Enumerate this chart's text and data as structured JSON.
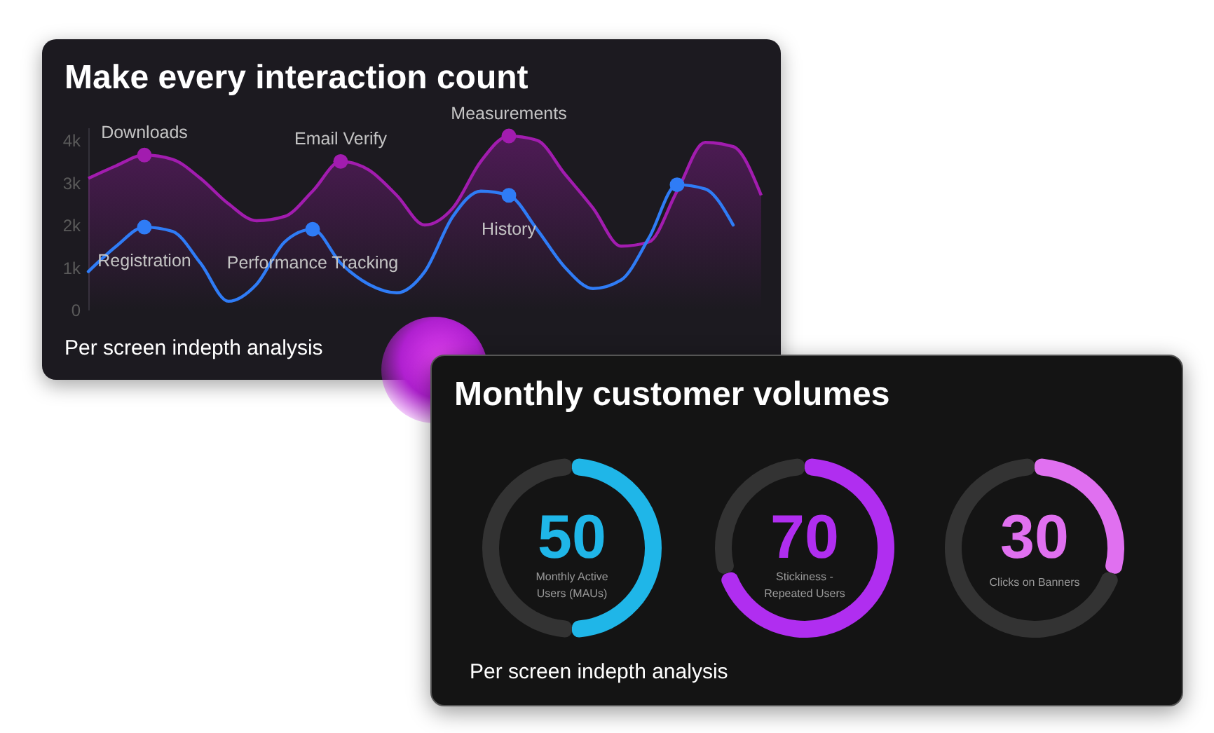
{
  "chart_data": [
    {
      "type": "line",
      "title": "Make every interaction count",
      "categories": [
        null,
        null,
        null,
        null,
        null,
        null,
        null,
        null,
        null,
        null,
        null,
        null,
        null,
        null,
        null,
        null,
        null,
        null,
        null,
        null,
        null,
        null,
        null,
        null,
        null
      ],
      "ylim": [
        0,
        4300
      ],
      "yticks": [
        0,
        {
          "value": 1000,
          "label": "1k"
        },
        {
          "value": 2000,
          "label": "2k"
        },
        {
          "value": 3000,
          "label": "3k"
        },
        {
          "value": 4000,
          "label": "4k"
        }
      ],
      "tick_labels": "y",
      "series": [
        {
          "type": "area",
          "color": "#a21caf",
          "values": [
            3100,
            3400,
            3650,
            3550,
            3100,
            2500,
            2100,
            2200,
            2800,
            3500,
            3300,
            2700,
            2000,
            2400,
            3500,
            4100,
            4000,
            3200,
            2400,
            1500,
            1600,
            2800,
            3950,
            3850,
            2700
          ]
        },
        {
          "type": "line",
          "color": "#2f7cf6",
          "values": [
            900,
            1500,
            1950,
            1850,
            1100,
            200,
            600,
            1600,
            1900,
            1100,
            600,
            400,
            900,
            2200,
            2800,
            2700,
            1900,
            1000,
            500,
            700,
            1700,
            2950,
            2850,
            2000,
            null
          ]
        },
        {
          "type": "scatter",
          "marker": "circle",
          "color": "#a21caf",
          "values": [
            null,
            null,
            3650,
            null,
            null,
            null,
            null,
            null,
            null,
            3500,
            null,
            null,
            null,
            null,
            null,
            4100,
            null,
            null,
            null,
            null,
            null,
            null,
            null,
            null,
            null
          ]
        },
        {
          "type": "scatter",
          "marker": "circle",
          "color": "#2f7cf6",
          "values": [
            null,
            null,
            1950,
            null,
            null,
            null,
            null,
            null,
            1900,
            null,
            null,
            null,
            null,
            null,
            null,
            2700,
            null,
            null,
            null,
            null,
            null,
            2950,
            null,
            null,
            null
          ]
        }
      ],
      "annotations": [
        {
          "text": "Downloads",
          "y": 3650
        },
        {
          "text": "Email Verify",
          "y": 3500
        },
        {
          "text": "Measurements",
          "y": 4100
        },
        {
          "text": "Registration",
          "y": 1950
        },
        {
          "text": "Performance Tracking",
          "y": 1900
        },
        {
          "text": "History",
          "y": 2700
        },
        "Per screen indepth analysis"
      ]
    },
    {
      "type": "donut",
      "title": "Monthly customer volumes",
      "categories": [
        "Monthly Active Users (MAUs)",
        null
      ],
      "values": [
        50,
        50
      ],
      "colors": [
        "#1fb6e8",
        "#333333"
      ],
      "value_labels": [
        "50",
        null
      ],
      "annotations": [
        "Per screen indepth analysis"
      ]
    },
    {
      "type": "donut",
      "categories": [
        "Stickiness - Repeated Users",
        null
      ],
      "values": [
        70,
        30
      ],
      "colors": [
        "#b02ef0",
        "#333333"
      ],
      "value_labels": [
        "70",
        null
      ]
    },
    {
      "type": "donut",
      "categories": [
        "Clicks on Banners",
        null
      ],
      "values": [
        30,
        70
      ],
      "colors": [
        "#e070f0",
        "#333333"
      ],
      "value_labels": [
        "30",
        null
      ]
    }
  ]
}
